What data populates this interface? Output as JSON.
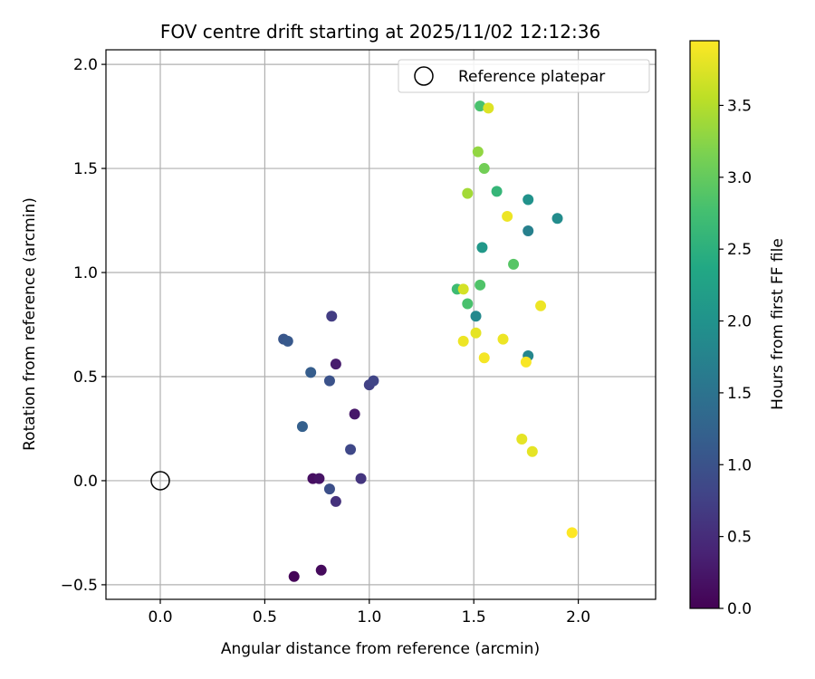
{
  "chart_data": {
    "type": "scatter",
    "title": "FOV centre drift starting at 2025/11/02 12:12:36",
    "xlabel": "Angular distance from reference (arcmin)",
    "ylabel": "Rotation from reference (arcmin)",
    "xlim": [
      -0.26,
      2.37
    ],
    "ylim": [
      -0.57,
      2.07
    ],
    "xticks": [
      0.0,
      0.5,
      1.0,
      1.5,
      2.0
    ],
    "xtick_labels": [
      "0.0",
      "0.5",
      "1.0",
      "1.5",
      "2.0"
    ],
    "yticks": [
      -0.5,
      0.0,
      0.5,
      1.0,
      1.5,
      2.0
    ],
    "ytick_labels": [
      "−0.5",
      "0.0",
      "0.5",
      "1.0",
      "1.5",
      "2.0"
    ],
    "grid": true,
    "legend": {
      "position": "top-right",
      "entries": [
        "Reference platepar"
      ]
    },
    "reference": {
      "x": 0.0,
      "y": 0.0,
      "label": "Reference platepar"
    },
    "colorbar": {
      "label": "Hours from first FF file",
      "colormap": "viridis",
      "range": [
        0.0,
        3.95
      ],
      "ticks": [
        0.0,
        0.5,
        1.0,
        1.5,
        2.0,
        2.5,
        3.0,
        3.5
      ],
      "tick_labels": [
        "0.0",
        "0.5",
        "1.0",
        "1.5",
        "2.0",
        "2.5",
        "3.0",
        "3.5"
      ]
    },
    "points": [
      {
        "x": 0.64,
        "y": -0.46,
        "c": 0.05
      },
      {
        "x": 0.77,
        "y": -0.43,
        "c": 0.1
      },
      {
        "x": 0.73,
        "y": 0.01,
        "c": 0.15
      },
      {
        "x": 0.76,
        "y": 0.01,
        "c": 0.2
      },
      {
        "x": 0.93,
        "y": 0.32,
        "c": 0.25
      },
      {
        "x": 0.84,
        "y": 0.56,
        "c": 0.3
      },
      {
        "x": 0.84,
        "y": -0.1,
        "c": 0.55
      },
      {
        "x": 0.96,
        "y": 0.01,
        "c": 0.6
      },
      {
        "x": 0.82,
        "y": 0.79,
        "c": 0.7
      },
      {
        "x": 1.0,
        "y": 0.46,
        "c": 0.75
      },
      {
        "x": 1.02,
        "y": 0.48,
        "c": 0.8
      },
      {
        "x": 0.91,
        "y": 0.15,
        "c": 0.85
      },
      {
        "x": 0.81,
        "y": -0.04,
        "c": 0.95
      },
      {
        "x": 0.81,
        "y": 0.48,
        "c": 1.0
      },
      {
        "x": 0.59,
        "y": 0.68,
        "c": 1.05
      },
      {
        "x": 0.61,
        "y": 0.67,
        "c": 1.1
      },
      {
        "x": 0.72,
        "y": 0.52,
        "c": 1.15
      },
      {
        "x": 0.68,
        "y": 0.26,
        "c": 1.2
      },
      {
        "x": 1.76,
        "y": 1.2,
        "c": 1.7
      },
      {
        "x": 1.76,
        "y": 0.6,
        "c": 1.8
      },
      {
        "x": 1.51,
        "y": 0.79,
        "c": 1.85
      },
      {
        "x": 1.9,
        "y": 1.26,
        "c": 1.9
      },
      {
        "x": 1.76,
        "y": 1.35,
        "c": 2.0
      },
      {
        "x": 1.54,
        "y": 1.12,
        "c": 2.1
      },
      {
        "x": 1.61,
        "y": 1.39,
        "c": 2.6
      },
      {
        "x": 1.42,
        "y": 0.92,
        "c": 2.7
      },
      {
        "x": 1.47,
        "y": 0.85,
        "c": 2.8
      },
      {
        "x": 1.53,
        "y": 1.8,
        "c": 2.8
      },
      {
        "x": 1.53,
        "y": 0.94,
        "c": 2.85
      },
      {
        "x": 1.69,
        "y": 1.04,
        "c": 2.9
      },
      {
        "x": 1.55,
        "y": 1.5,
        "c": 3.1
      },
      {
        "x": 1.52,
        "y": 1.58,
        "c": 3.3
      },
      {
        "x": 1.47,
        "y": 1.38,
        "c": 3.4
      },
      {
        "x": 1.45,
        "y": 0.92,
        "c": 3.7
      },
      {
        "x": 1.57,
        "y": 1.79,
        "c": 3.75
      },
      {
        "x": 1.73,
        "y": 0.2,
        "c": 3.8
      },
      {
        "x": 1.78,
        "y": 0.14,
        "c": 3.8
      },
      {
        "x": 1.51,
        "y": 0.71,
        "c": 3.8
      },
      {
        "x": 1.66,
        "y": 1.27,
        "c": 3.85
      },
      {
        "x": 1.64,
        "y": 0.68,
        "c": 3.85
      },
      {
        "x": 1.45,
        "y": 0.67,
        "c": 3.85
      },
      {
        "x": 1.82,
        "y": 0.84,
        "c": 3.85
      },
      {
        "x": 1.55,
        "y": 0.59,
        "c": 3.9
      },
      {
        "x": 1.75,
        "y": 0.57,
        "c": 3.92
      },
      {
        "x": 1.97,
        "y": -0.25,
        "c": 3.95
      }
    ]
  }
}
